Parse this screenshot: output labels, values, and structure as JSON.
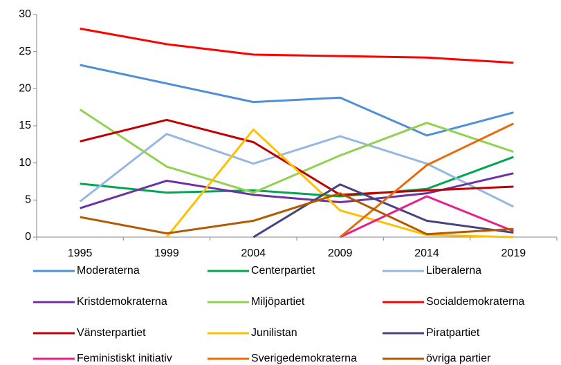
{
  "chart_data": {
    "type": "line",
    "categories": [
      "1995",
      "1999",
      "2004",
      "2009",
      "2014",
      "2019"
    ],
    "ylim": [
      0,
      30
    ],
    "yticks": [
      0,
      5,
      10,
      15,
      20,
      25,
      30
    ],
    "legend": "bottom",
    "series": [
      {
        "name": "Moderaterna",
        "color": "#4f8fd6",
        "values": [
          23.2,
          20.7,
          18.2,
          18.8,
          13.7,
          16.8
        ]
      },
      {
        "name": "Centerpartiet",
        "color": "#00a651",
        "values": [
          7.2,
          6.0,
          6.3,
          5.5,
          6.5,
          10.8
        ]
      },
      {
        "name": "Liberalerna",
        "color": "#95b8e3",
        "values": [
          4.8,
          13.9,
          9.9,
          13.6,
          9.9,
          4.1
        ]
      },
      {
        "name": "Kristdemokraterna",
        "color": "#7030a0",
        "values": [
          3.9,
          7.6,
          5.7,
          4.7,
          5.9,
          8.6
        ]
      },
      {
        "name": "Miljöpartiet",
        "color": "#92d050",
        "values": [
          17.2,
          9.5,
          6.0,
          11.0,
          15.4,
          11.5
        ]
      },
      {
        "name": "Socialdemokraterna",
        "color": "#ff0000",
        "values": [
          28.1,
          26.0,
          24.6,
          24.4,
          24.2,
          23.5
        ]
      },
      {
        "name": "Vänsterpartiet",
        "color": "#c00000",
        "values": [
          12.9,
          15.8,
          12.8,
          5.7,
          6.3,
          6.8
        ]
      },
      {
        "name": "Junilistan",
        "color": "#ffc000",
        "values": [
          null,
          0,
          14.5,
          3.6,
          0.3,
          0
        ]
      },
      {
        "name": "Piratpartiet",
        "color": "#44447e",
        "values": [
          null,
          null,
          0,
          7.1,
          2.2,
          0.6
        ]
      },
      {
        "name": "Feministiskt initiativ",
        "color": "#e6208c",
        "values": [
          null,
          null,
          null,
          0,
          5.5,
          0.8
        ]
      },
      {
        "name": "Sverigedemokraterna",
        "color": "#e46c0a",
        "values": [
          null,
          null,
          null,
          0,
          9.7,
          15.3
        ]
      },
      {
        "name": "övriga partier",
        "color": "#b35a00",
        "values": [
          2.7,
          0.5,
          2.2,
          5.9,
          0.4,
          1.1
        ]
      }
    ]
  }
}
